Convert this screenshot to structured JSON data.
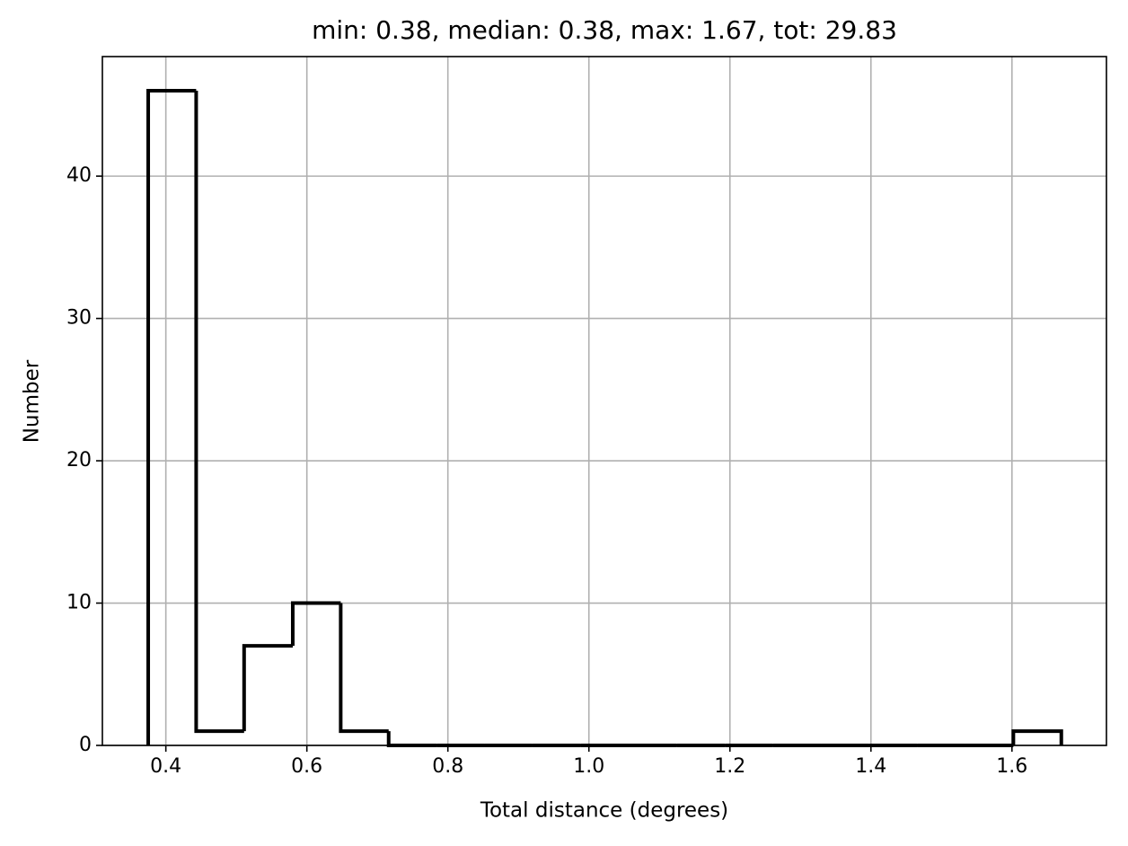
{
  "chart_data": {
    "type": "histogram",
    "title": "min: 0.38, median: 0.38, max: 1.67, tot: 29.83",
    "xlabel": "Total distance (degrees)",
    "ylabel": "Number",
    "bins": [
      0.375,
      0.443,
      0.511,
      0.58,
      0.648,
      0.716,
      0.784,
      0.852,
      0.92,
      0.988,
      1.057,
      1.125,
      1.193,
      1.261,
      1.329,
      1.397,
      1.466,
      1.534,
      1.602,
      1.67
    ],
    "counts": [
      46,
      1,
      7,
      10,
      1,
      0,
      0,
      0,
      0,
      0,
      0,
      0,
      0,
      0,
      0,
      0,
      0,
      0,
      1
    ],
    "color": "#000000",
    "xlim": [
      0.31,
      1.734
    ],
    "ylim": [
      0,
      48.4
    ],
    "xticks": [
      0.4,
      0.6,
      0.8,
      {
        "value": 1,
        "label": "1.0"
      },
      1.2,
      1.4,
      1.6
    ],
    "yticks": [
      0,
      10,
      20,
      30,
      40
    ],
    "grid": true
  }
}
